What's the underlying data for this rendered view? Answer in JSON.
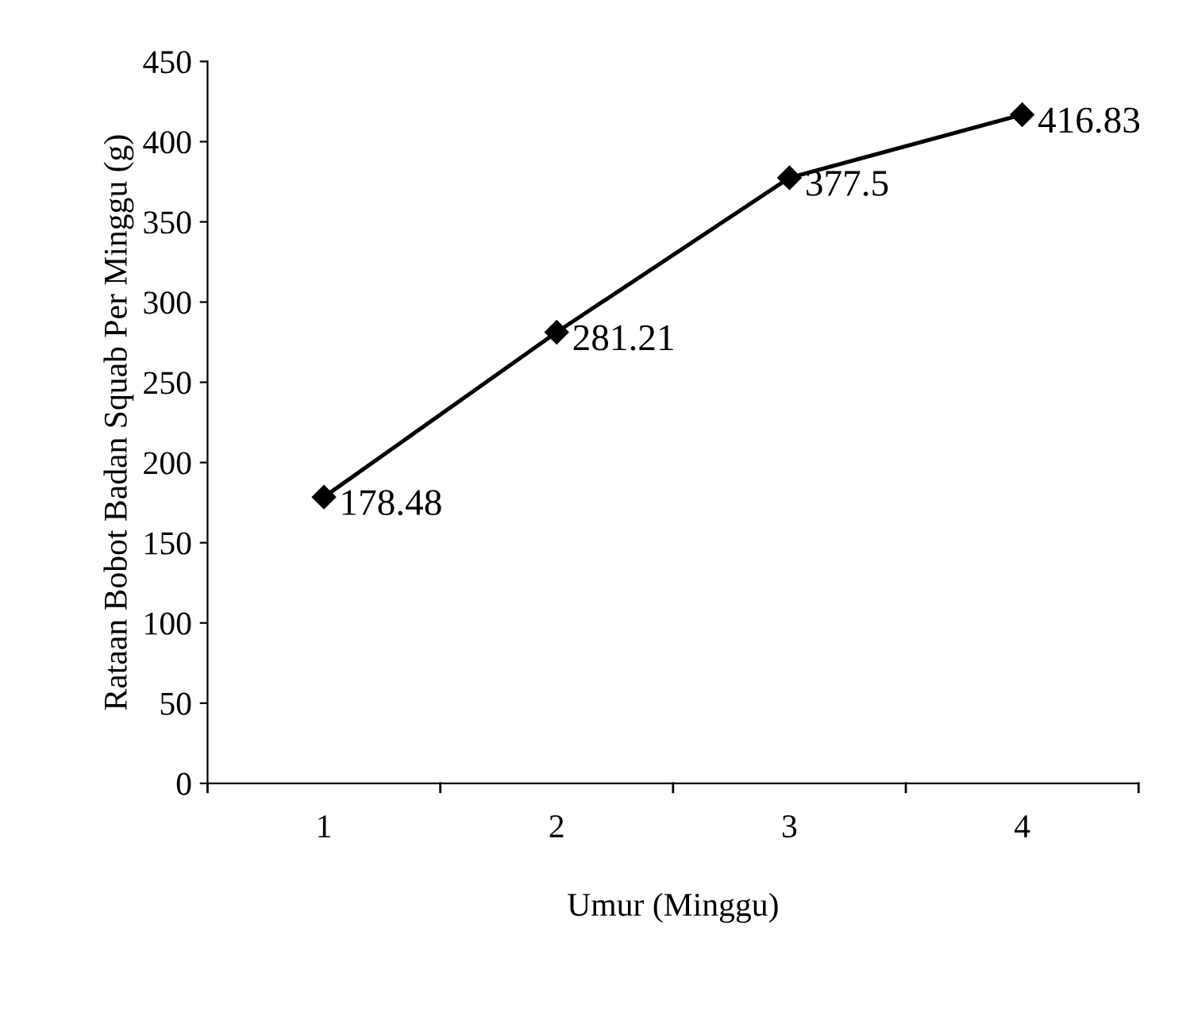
{
  "chart_data": {
    "type": "line",
    "xlabel": "Umur (Minggu)",
    "ylabel": "Rataan Bobot Badan Squab Per Minggu (g)",
    "categories": [
      "1",
      "2",
      "3",
      "4"
    ],
    "series": [
      {
        "color": "#000000",
        "values": [
          178.48,
          281.21,
          377.5,
          416.83
        ],
        "value_labels": [
          "178.48",
          "281.21",
          "377.5",
          "416.83"
        ]
      }
    ],
    "ylim": [
      0,
      450
    ],
    "yticks": [
      0,
      50,
      100,
      150,
      200,
      250,
      300,
      350,
      400,
      450
    ],
    "marker": "diamond",
    "line_style": "solid",
    "grid": false,
    "legend": false
  }
}
